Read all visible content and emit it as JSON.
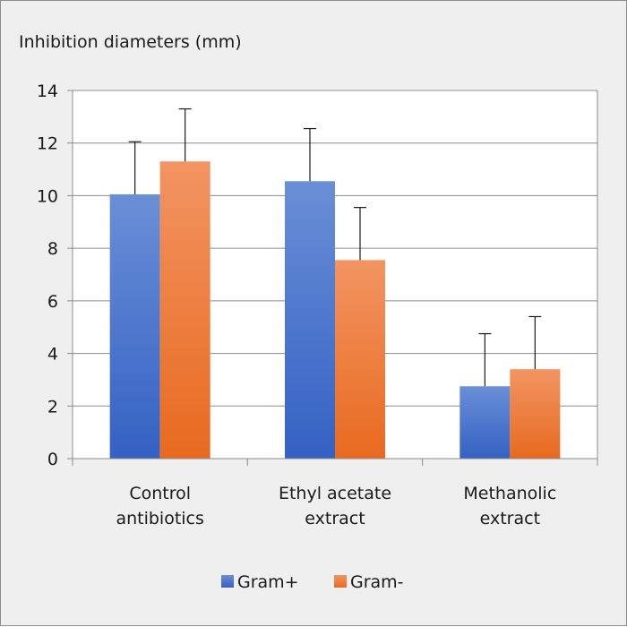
{
  "chart_data": {
    "type": "bar",
    "title": "Inhibition diameters (mm)",
    "categories": [
      [
        "Control",
        "antibiotics"
      ],
      [
        "Ethyl acetate",
        "extract"
      ],
      [
        "Methanolic",
        "extract"
      ]
    ],
    "series": [
      {
        "name": "Gram+",
        "values": [
          10.05,
          10.55,
          2.75
        ],
        "errors": [
          2.0,
          2.0,
          2.0
        ],
        "color_top": "#6a8fd6",
        "color_bottom": "#3461c4"
      },
      {
        "name": "Gram-",
        "values": [
          11.3,
          7.55,
          3.4
        ],
        "errors": [
          2.0,
          2.0,
          2.0
        ],
        "color_top": "#f29462",
        "color_bottom": "#e86a1f"
      }
    ],
    "ylim": [
      0,
      14
    ],
    "yticks": [
      "0",
      "2",
      "4",
      "6",
      "8",
      "10",
      "12",
      "14"
    ],
    "grid": true,
    "legend": "bottom-center",
    "xlabel": "",
    "ylabel": ""
  }
}
